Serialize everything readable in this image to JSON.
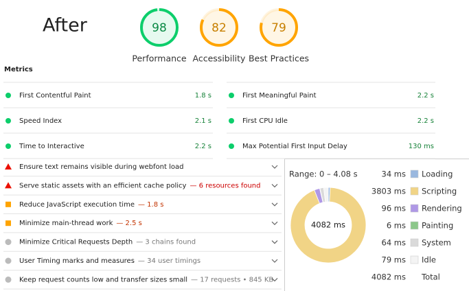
{
  "header": {
    "title": "After"
  },
  "scores": [
    {
      "value": 98,
      "label": "Performance",
      "color": "#0cce6b",
      "text_color": "#0a8a45"
    },
    {
      "value": 82,
      "label": "Accessibility",
      "color": "#ffa400",
      "text_color": "#c77f00"
    },
    {
      "value": 79,
      "label": "Best Practices",
      "color": "#ffa400",
      "text_color": "#c77f00"
    }
  ],
  "metrics_title": "Metrics",
  "metrics": [
    {
      "name": "First Contentful Paint",
      "value": "1.8 s"
    },
    {
      "name": "First Meaningful Paint",
      "value": "2.2 s"
    },
    {
      "name": "Speed Index",
      "value": "2.1 s"
    },
    {
      "name": "First CPU Idle",
      "value": "2.2 s"
    },
    {
      "name": "Time to Interactive",
      "value": "2.2 s"
    },
    {
      "name": "Max Potential First Input Delay",
      "value": "130 ms"
    }
  ],
  "audits": [
    {
      "status": "fail",
      "title": "Ensure text remains visible during webfont load"
    },
    {
      "status": "fail",
      "title": "Serve static assets with an efficient cache policy",
      "detail": "— 6 resources found"
    },
    {
      "status": "average",
      "title": "Reduce JavaScript execution time",
      "detail": "— 1.8 s"
    },
    {
      "status": "average",
      "title": "Minimize main-thread work",
      "detail": "— 2.5 s"
    },
    {
      "status": "info",
      "title": "Minimize Critical Requests Depth",
      "detail": "— 3 chains found"
    },
    {
      "status": "info",
      "title": "User Timing marks and measures",
      "detail": "— 34 user timings"
    },
    {
      "status": "info",
      "title": "Keep request counts low and transfer sizes small",
      "detail": "— 17 requests • 845 KB"
    }
  ],
  "breakdown": {
    "range": "Range: 0 – 4.08 s",
    "items": [
      {
        "label": "Loading",
        "value": 34,
        "value_label": "34 ms",
        "color": "#9ab8df"
      },
      {
        "label": "Scripting",
        "value": 3803,
        "value_label": "3803 ms",
        "color": "#f1d486"
      },
      {
        "label": "Rendering",
        "value": 96,
        "value_label": "96 ms",
        "color": "#af98e6"
      },
      {
        "label": "Painting",
        "value": 6,
        "value_label": "6 ms",
        "color": "#8cc78a"
      },
      {
        "label": "System",
        "value": 64,
        "value_label": "64 ms",
        "color": "#dadada"
      },
      {
        "label": "Idle",
        "value": 79,
        "value_label": "79 ms",
        "color": "#f4f4f4"
      }
    ],
    "total": {
      "label": "Total",
      "value": 4082,
      "value_label": "4082 ms"
    }
  }
}
